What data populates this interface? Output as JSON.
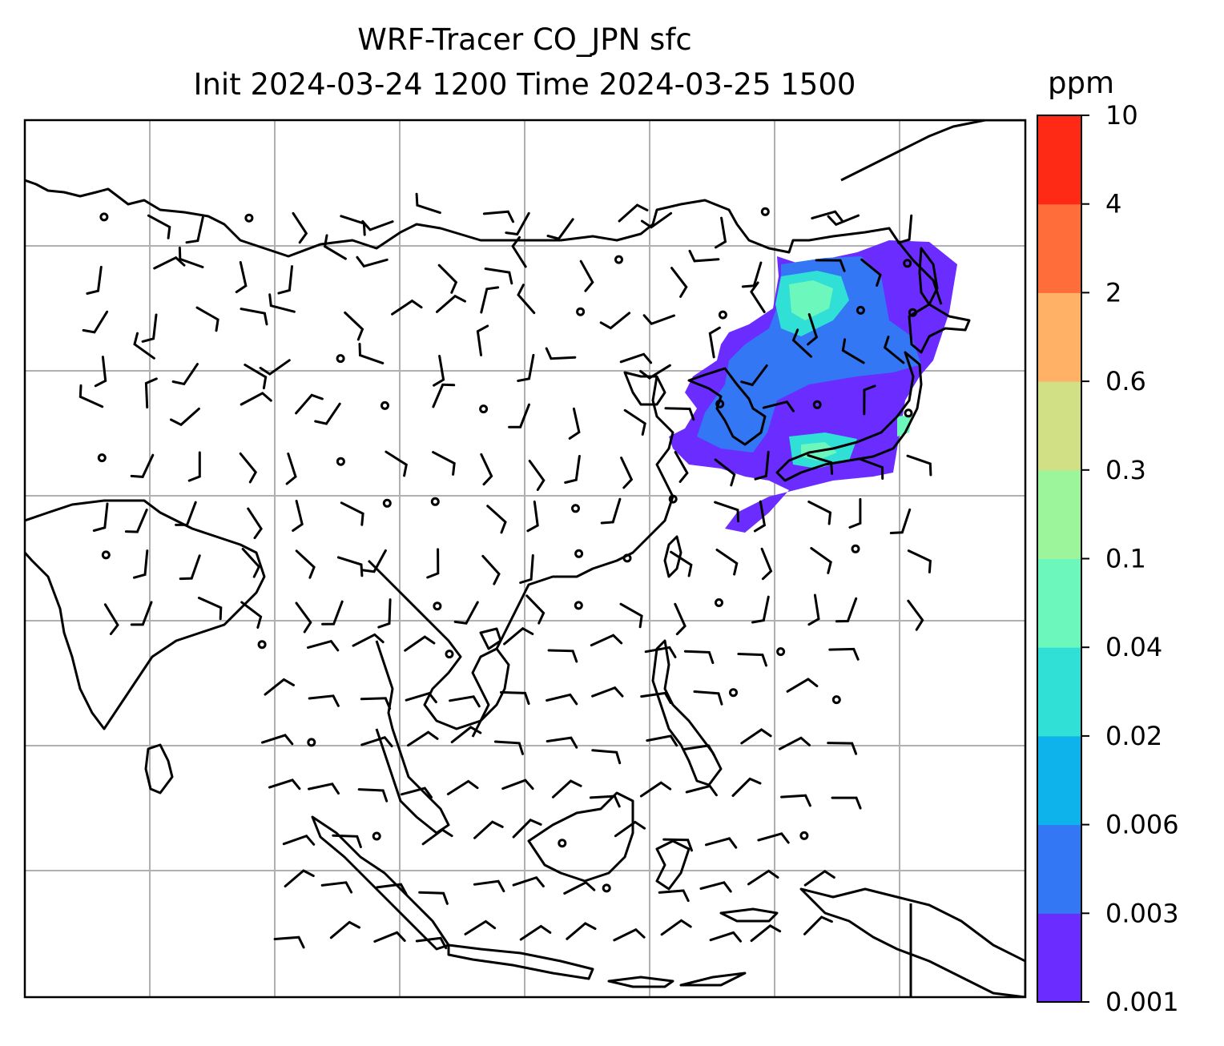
{
  "figure": {
    "title_line1": "WRF-Tracer CO_JPN sfc",
    "title_line2": "Init 2024-03-24 1200 Time 2024-03-25 1500"
  },
  "colorbar": {
    "unit": "ppm",
    "levels": [
      "0.001",
      "0.003",
      "0.006",
      "0.02",
      "0.04",
      "0.1",
      "0.3",
      "0.6",
      "2",
      "4",
      "10"
    ],
    "colors": [
      "#6a2cff",
      "#3377f5",
      "#0db3ea",
      "#30dfd5",
      "#6cf8bd",
      "#9cf59a",
      "#d2e085",
      "#ffb165",
      "#ff6e3a",
      "#ff2a16"
    ]
  },
  "colors": {
    "frame": "#000000",
    "grid": "#b0b0b0",
    "coastline": "#000000",
    "barbs": "#000000"
  }
}
